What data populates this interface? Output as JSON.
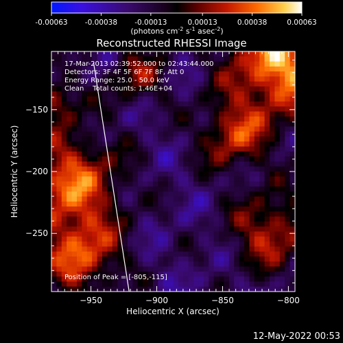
{
  "chart_data": {
    "type": "heatmap",
    "title": "Reconstructed RHESSI Image",
    "colorbar": {
      "ticks": [
        "-0.00063",
        "-0.00038",
        "-0.00013",
        "0.00013",
        "0.00038",
        "0.00063"
      ],
      "range": [
        -0.00063,
        0.00063
      ],
      "label_main": "(photons cm",
      "label_sup1": "-2",
      "label_mid1": " s",
      "label_sup2": "-1",
      "label_mid2": " asec",
      "label_sup3": "-2",
      "label_end": ")",
      "colormap": "blue-black-red-yellow-white"
    },
    "annotation": {
      "time": "17-Mar-2013 02:39:52.000 to 02:43:44.000",
      "detectors": "Detectors: 3F 4F 5F 6F 7F 8F, Att 0",
      "energy": "Energy Range: 25.0 - 50.0 keV",
      "method": "Clean    Total counts: 1.46E+04",
      "peak": "Position of Peak = [-805,-115]"
    },
    "xlabel": "Heliocentric X (arcsec)",
    "ylabel": "Heliocentric Y (arcsec)",
    "xlim": [
      -980,
      -795
    ],
    "ylim": [
      -297,
      -103
    ],
    "xticks": [
      {
        "value": -950,
        "label": "−950"
      },
      {
        "value": -900,
        "label": "−900"
      },
      {
        "value": -850,
        "label": "−850"
      },
      {
        "value": -800,
        "label": "−800"
      }
    ],
    "yticks": [
      {
        "value": -150,
        "label": "−150"
      },
      {
        "value": -200,
        "label": "−200"
      },
      {
        "value": -250,
        "label": "−250"
      }
    ],
    "limb_line": {
      "x1": -948,
      "y1": -112,
      "x2": -921,
      "y2": -297
    },
    "peak_position": [
      -805,
      -115
    ]
  },
  "footer": {
    "date": "12-May-2022 00:53"
  },
  "colors": {
    "background": "#000000",
    "text": "#ffffff"
  }
}
